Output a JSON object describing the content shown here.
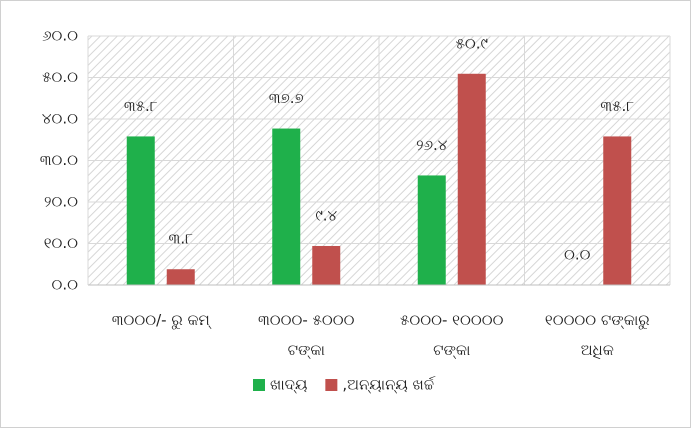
{
  "chart_data": {
    "type": "bar",
    "categories": [
      "୩୦୦୦/- ରୁ କମ୍",
      "୩୦୦୦- ୫୦୦୦ ଟଙ୍କା",
      "୫୦୦୦- ୧୦୦୦୦ ଟଙ୍କା",
      "୧୦୦୦୦ ଟଙ୍କାରୁ ଅଧିକ"
    ],
    "series": [
      {
        "name": "ଖାଦ୍ୟ",
        "color": "#1fb04b",
        "values": [
          35.8,
          37.7,
          26.4,
          0.0
        ],
        "value_labels": [
          "୩୫.୮",
          "୩୭.୭",
          "୨୬.୪",
          "୦.୦"
        ]
      },
      {
        "name": ",ଅନ୍ୟାନ୍ୟ ଖର୍ଚ୍ଚ",
        "color": "#c0504d",
        "values": [
          3.8,
          9.4,
          50.9,
          35.8
        ],
        "value_labels": [
          "୩.୮",
          "୯.୪",
          "୫୦.୯",
          "୩୫.୮"
        ]
      }
    ],
    "ylim": [
      0,
      60
    ],
    "yticks": [
      {
        "value": 0,
        "label": "୦.୦"
      },
      {
        "value": 10,
        "label": "୧୦.୦"
      },
      {
        "value": 20,
        "label": "୨୦.୦"
      },
      {
        "value": 30,
        "label": "୩୦.୦"
      },
      {
        "value": 40,
        "label": "୪୦.୦"
      },
      {
        "value": 50,
        "label": "୫୦.୦"
      },
      {
        "value": 60,
        "label": "୬୦.୦"
      }
    ],
    "grid": true,
    "legend": "bottom"
  }
}
